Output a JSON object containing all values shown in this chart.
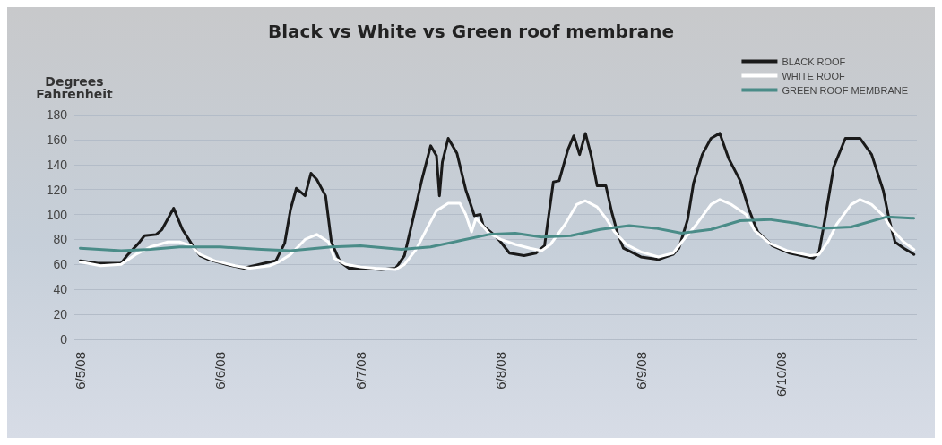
{
  "chart_data": {
    "type": "line",
    "title": "Black vs White vs Green roof membrane",
    "ylabel": "Degrees Fahrenheit",
    "xlim": [
      "--06-04T23:00",
      "--06-10T23:15"
    ],
    "xticks": [
      {
        "value": "--06-05",
        "label": "6/5/08"
      },
      {
        "value": "--06-06",
        "label": "6/6/08"
      },
      {
        "value": "--06-07",
        "label": "6/7/08"
      },
      {
        "value": "--06-08",
        "label": "6/8/08"
      },
      {
        "value": "--06-09",
        "label": "6/9/08"
      },
      {
        "value": "--06-10",
        "label": "6/10/08"
      }
    ],
    "ylim": [
      0,
      180
    ],
    "yticks": [
      0,
      20,
      40,
      60,
      80,
      100,
      120,
      140,
      160,
      180
    ],
    "grid": "y",
    "legend": "top right",
    "marker": "none",
    "line_style": "solid",
    "series": [
      {
        "name": "BLACK ROOF",
        "color": "#1a1a1a",
        "x": [
          "--06-05T00:00",
          "--06-05T03:00",
          "--06-05T07:00",
          "--06-05T08:00",
          "--06-05T10:00",
          "--06-05T11:00",
          "--06-05T13:00",
          "--06-05T14:00",
          "--06-05T16:00",
          "--06-05T17:30",
          "--06-05T19:00",
          "--06-05T20:30",
          "--06-05T22:00",
          "--06-06T01:00",
          "--06-06T04:00",
          "--06-06T07:30",
          "--06-06T09:30",
          "--06-06T11:00",
          "--06-06T12:00",
          "--06-06T13:00",
          "--06-06T14:30",
          "--06-06T15:30",
          "--06-06T16:30",
          "--06-06T18:00",
          "--06-06T19:00",
          "--06-06T20:30",
          "--06-06T22:00",
          "--06-07T00:30",
          "--06-07T03:30",
          "--06-07T06:00",
          "--06-07T07:30",
          "--06-07T09:00",
          "--06-07T10:30",
          "--06-07T12:00",
          "--06-07T13:00",
          "--06-07T13:30",
          "--06-07T14:00",
          "--06-07T15:00",
          "--06-07T16:30",
          "--06-07T18:00",
          "--06-07T19:30",
          "--06-07T20:30",
          "--06-07T21:00",
          "--06-07T23:00",
          "--06-08T00:00",
          "--06-08T01:30",
          "--06-08T04:00",
          "--06-08T06:00",
          "--06-08T07:30",
          "--06-08T09:00",
          "--06-08T10:00",
          "--06-08T11:30",
          "--06-08T12:30",
          "--06-08T13:30",
          "--06-08T14:30",
          "--06-08T15:30",
          "--06-08T16:30",
          "--06-08T18:00",
          "--06-08T19:00",
          "--06-08T20:00",
          "--06-08T21:00",
          "--06-09T00:00",
          "--06-09T03:00",
          "--06-09T05:30",
          "--06-09T06:30",
          "--06-09T08:00",
          "--06-09T09:00",
          "--06-09T10:30",
          "--06-09T12:00",
          "--06-09T13:30",
          "--06-09T15:00",
          "--06-09T17:00",
          "--06-09T18:30",
          "--06-09T20:00",
          "--06-09T22:30",
          "--06-10T01:30",
          "--06-10T05:30",
          "--06-10T06:30",
          "--06-10T07:30",
          "--06-10T09:00",
          "--06-10T11:00",
          "--06-10T13:30",
          "--06-10T15:30",
          "--06-10T17:30",
          "--06-10T18:30",
          "--06-10T19:30",
          "--06-10T21:00",
          "--06-10T22:45"
        ],
        "values": [
          63,
          61,
          61,
          67,
          77,
          83,
          84,
          88,
          105,
          88,
          77,
          67,
          64,
          60,
          57,
          61,
          63,
          77,
          104,
          121,
          115,
          133,
          128,
          115,
          78,
          62,
          57,
          57,
          56,
          57,
          67,
          97,
          128,
          155,
          147,
          115,
          142,
          161,
          149,
          120,
          99,
          100,
          91,
          83,
          78,
          69,
          67,
          69,
          75,
          126,
          127,
          152,
          163,
          148,
          165,
          147,
          123,
          123,
          102,
          85,
          73,
          66,
          64,
          68,
          73,
          96,
          125,
          148,
          161,
          165,
          145,
          127,
          104,
          86,
          75,
          69,
          65,
          70,
          96,
          138,
          161,
          161,
          148,
          119,
          96,
          78,
          73,
          68
        ]
      },
      {
        "name": "WHITE ROOF",
        "color": "#ffffff",
        "x": [
          "--06-05T00:00",
          "--06-05T03:30",
          "--06-05T07:00",
          "--06-05T09:30",
          "--06-05T12:00",
          "--06-05T15:00",
          "--06-05T17:00",
          "--06-05T19:00",
          "--06-05T20:30",
          "--06-05T23:00",
          "--06-06T02:30",
          "--06-06T05:00",
          "--06-06T08:30",
          "--06-06T10:00",
          "--06-06T12:00",
          "--06-06T14:30",
          "--06-06T16:30",
          "--06-06T18:30",
          "--06-06T19:30",
          "--06-06T21:30",
          "--06-07T00:00",
          "--06-07T02:30",
          "--06-07T06:00",
          "--06-07T07:30",
          "--06-07T09:30",
          "--06-07T11:30",
          "--06-07T13:00",
          "--06-07T15:00",
          "--06-07T17:00",
          "--06-07T18:00",
          "--06-07T19:00",
          "--06-07T19:45",
          "--06-07T20:30",
          "--06-07T22:00",
          "--06-08T00:00",
          "--06-08T02:30",
          "--06-08T05:00",
          "--06-08T07:00",
          "--06-08T08:30",
          "--06-08T11:00",
          "--06-08T13:00",
          "--06-08T14:30",
          "--06-08T16:30",
          "--06-08T18:00",
          "--06-08T19:30",
          "--06-08T21:30",
          "--06-09T00:00",
          "--06-09T03:00",
          "--06-09T05:30",
          "--06-09T07:00",
          "--06-09T09:30",
          "--06-09T12:00",
          "--06-09T13:30",
          "--06-09T15:30",
          "--06-09T18:00",
          "--06-09T19:30",
          "--06-09T22:00",
          "--06-10T01:00",
          "--06-10T05:00",
          "--06-10T06:30",
          "--06-10T08:00",
          "--06-10T09:30",
          "--06-10T12:00",
          "--06-10T13:30",
          "--06-10T15:30",
          "--06-10T17:30",
          "--06-10T19:00",
          "--06-10T21:00",
          "--06-10T22:45"
        ],
        "values": [
          62,
          59,
          60,
          68,
          74,
          78,
          78,
          75,
          68,
          63,
          59,
          57,
          59,
          62,
          68,
          80,
          84,
          78,
          65,
          60,
          58,
          57,
          56,
          60,
          72,
          90,
          103,
          109,
          109,
          100,
          86,
          97,
          93,
          85,
          80,
          76,
          73,
          71,
          76,
          92,
          108,
          111,
          106,
          97,
          86,
          76,
          70,
          66,
          69,
          78,
          92,
          108,
          112,
          108,
          100,
          87,
          77,
          71,
          67,
          68,
          78,
          92,
          108,
          112,
          108,
          99,
          88,
          78,
          72
        ]
      },
      {
        "name": "GREEN ROOF MEMBRANE",
        "color": "#4a8c88",
        "x": [
          "--06-05T00:00",
          "--06-05T07:00",
          "--06-05T12:00",
          "--06-05T17:00",
          "--06-06T00:00",
          "--06-06T07:00",
          "--06-06T12:00",
          "--06-06T19:00",
          "--06-07T00:00",
          "--06-07T07:00",
          "--06-07T12:00",
          "--06-07T17:00",
          "--06-07T22:00",
          "--06-08T02:30",
          "--06-08T07:00",
          "--06-08T12:00",
          "--06-08T17:00",
          "--06-08T22:00",
          "--06-09T02:30",
          "--06-09T07:00",
          "--06-09T12:00",
          "--06-09T17:00",
          "--06-09T22:00",
          "--06-10T02:30",
          "--06-10T07:00",
          "--06-10T12:00",
          "--06-10T18:00",
          "--06-10T22:45"
        ],
        "values": [
          73,
          71,
          72,
          74,
          74,
          72,
          71,
          74,
          75,
          72,
          74,
          79,
          84,
          85,
          82,
          83,
          88,
          91,
          89,
          85,
          88,
          95,
          96,
          93,
          89,
          90,
          98,
          97
        ]
      }
    ]
  }
}
